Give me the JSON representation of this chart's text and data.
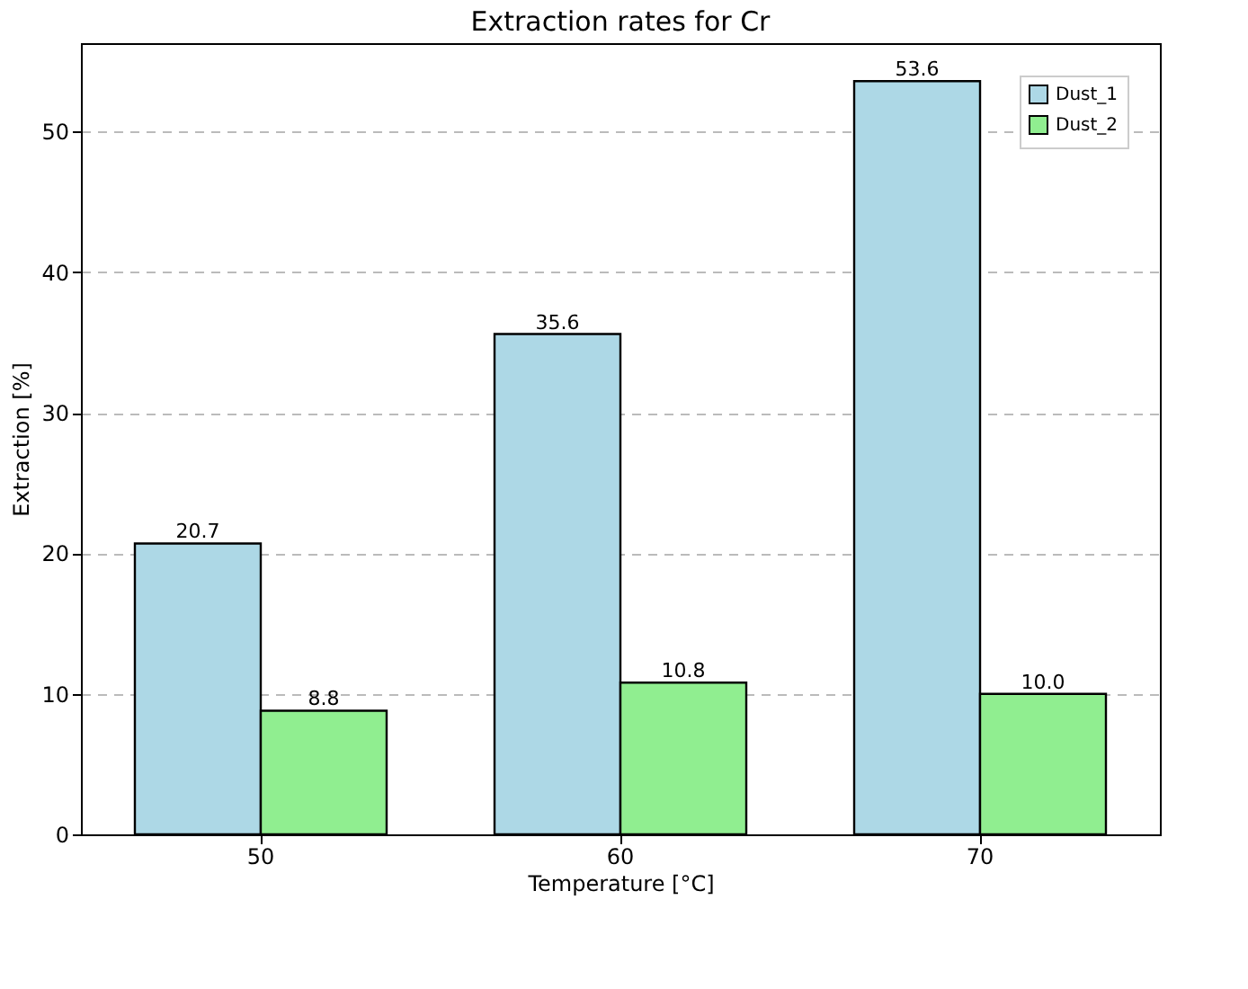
{
  "chart_data": {
    "type": "bar",
    "title": "Extraction rates for Cr",
    "xlabel": "Temperature [°C]",
    "ylabel": "Extraction [%]",
    "categories": [
      "50",
      "60",
      "70"
    ],
    "series": [
      {
        "name": "Dust_1",
        "color": "#add8e6",
        "values": [
          20.7,
          35.6,
          53.6
        ],
        "value_labels": [
          "20.7",
          "35.6",
          "53.6"
        ]
      },
      {
        "name": "Dust_2",
        "color": "#90ee90",
        "values": [
          8.8,
          10.8,
          10.0
        ],
        "value_labels": [
          "8.8",
          "10.8",
          "10.0"
        ]
      }
    ],
    "ylim": [
      0,
      56.3
    ],
    "yticks": [
      0,
      10,
      20,
      30,
      40,
      50
    ],
    "grid": "y",
    "legend": "top right"
  }
}
